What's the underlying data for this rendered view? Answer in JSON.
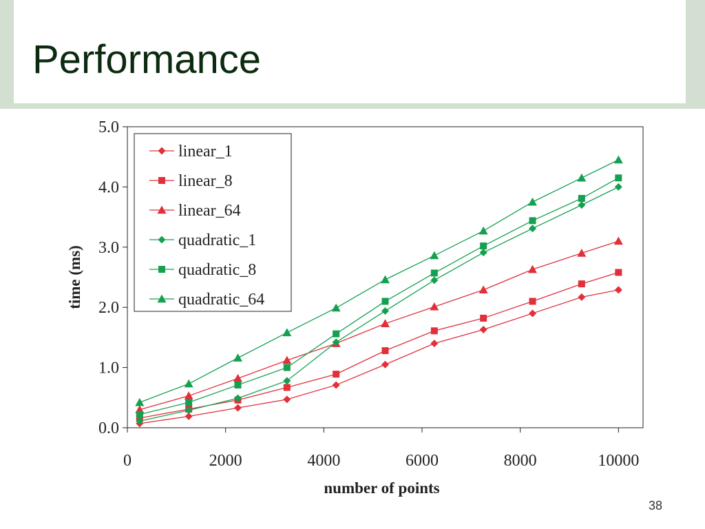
{
  "slide": {
    "title": "Performance",
    "number": "38"
  },
  "colors": {
    "title": "#0b2a10",
    "band": "#d3dfd0",
    "linear": "#e0303a",
    "quadratic": "#14a050"
  },
  "chart_data": {
    "type": "line",
    "title": "",
    "xlabel": "number of points",
    "ylabel": "time (ms)",
    "xlim": [
      0,
      10500
    ],
    "ylim": [
      0,
      5.0
    ],
    "x_ticks": [
      0,
      2000,
      4000,
      6000,
      8000,
      10000
    ],
    "y_ticks": [
      0.0,
      1.0,
      2.0,
      3.0,
      4.0,
      5.0
    ],
    "x_tick_labels": [
      "0",
      "2000",
      "4000",
      "6000",
      "8000",
      "10000"
    ],
    "y_tick_labels": [
      "0.0",
      "1.0",
      "2.0",
      "3.0",
      "4.0",
      "5.0"
    ],
    "grid": false,
    "legend_position": "top-left",
    "x": [
      250,
      1250,
      2250,
      3250,
      4250,
      5250,
      6250,
      7250,
      8250,
      9250,
      10000
    ],
    "series": [
      {
        "name": "linear_1",
        "color": "#e0303a",
        "marker": "diamond",
        "values": [
          0.07,
          0.19,
          0.33,
          0.47,
          0.71,
          1.05,
          1.4,
          1.63,
          1.9,
          2.17,
          2.29
        ]
      },
      {
        "name": "linear_8",
        "color": "#e0303a",
        "marker": "square",
        "values": [
          0.16,
          0.31,
          0.46,
          0.67,
          0.89,
          1.28,
          1.61,
          1.82,
          2.1,
          2.39,
          2.58
        ]
      },
      {
        "name": "linear_64",
        "color": "#e0303a",
        "marker": "triangle",
        "values": [
          0.3,
          0.53,
          0.82,
          1.12,
          1.4,
          1.73,
          2.01,
          2.29,
          2.63,
          2.9,
          3.1
        ]
      },
      {
        "name": "quadratic_1",
        "color": "#14a050",
        "marker": "diamond",
        "values": [
          0.11,
          0.29,
          0.49,
          0.78,
          1.42,
          1.94,
          2.45,
          2.91,
          3.31,
          3.7,
          4.0
        ]
      },
      {
        "name": "quadratic_8",
        "color": "#14a050",
        "marker": "square",
        "values": [
          0.22,
          0.42,
          0.71,
          1.0,
          1.56,
          2.1,
          2.57,
          3.02,
          3.44,
          3.81,
          4.15
        ]
      },
      {
        "name": "quadratic_64",
        "color": "#14a050",
        "marker": "triangle",
        "values": [
          0.42,
          0.73,
          1.16,
          1.58,
          1.99,
          2.46,
          2.86,
          3.27,
          3.75,
          4.15,
          4.45
        ]
      }
    ]
  }
}
